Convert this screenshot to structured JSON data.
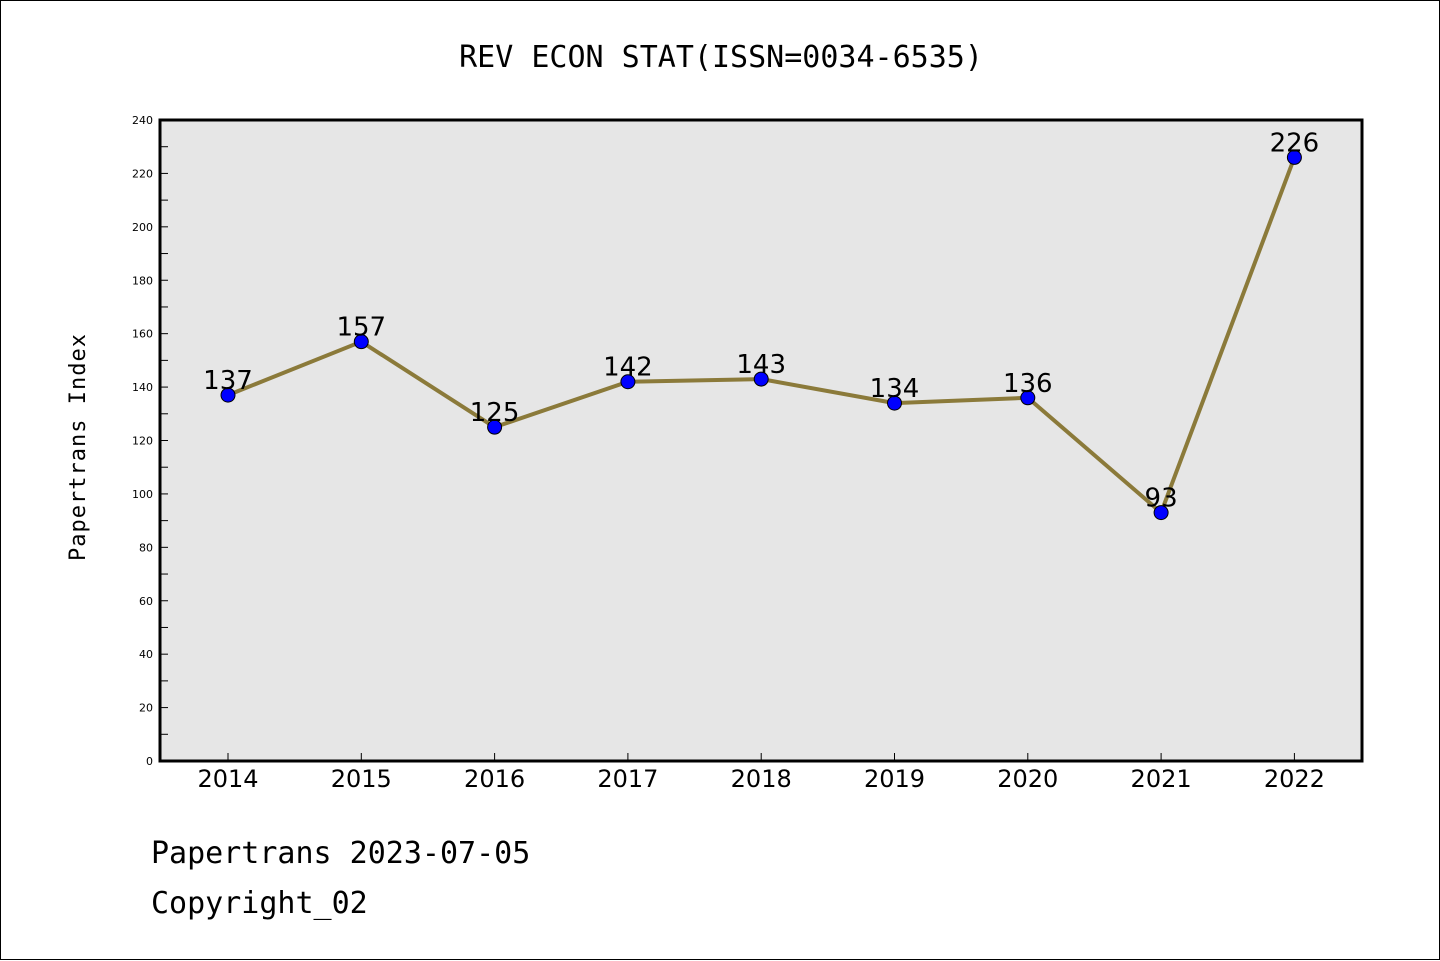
{
  "chart_data": {
    "type": "line",
    "title": "REV ECON STAT(ISSN=0034-6535)",
    "xlabel": "",
    "ylabel": "Papertrans Index",
    "categories": [
      "2014",
      "2015",
      "2016",
      "2017",
      "2018",
      "2019",
      "2020",
      "2021",
      "2022"
    ],
    "series": [
      {
        "values": [
          137,
          157,
          125,
          142,
          143,
          134,
          136,
          93,
          226
        ]
      }
    ],
    "ylim": [
      0,
      240
    ],
    "yticks": [
      0,
      20,
      40,
      60,
      80,
      100,
      120,
      140,
      160,
      180,
      200,
      220,
      240
    ],
    "grid": false,
    "data_labels": true,
    "colors": {
      "line": "#8B7A3A",
      "marker": "#0000FF",
      "plot_background": "#E6E6E6"
    }
  },
  "footer": {
    "line1": "Papertrans 2023-07-05",
    "line2": "Copyright_02"
  }
}
